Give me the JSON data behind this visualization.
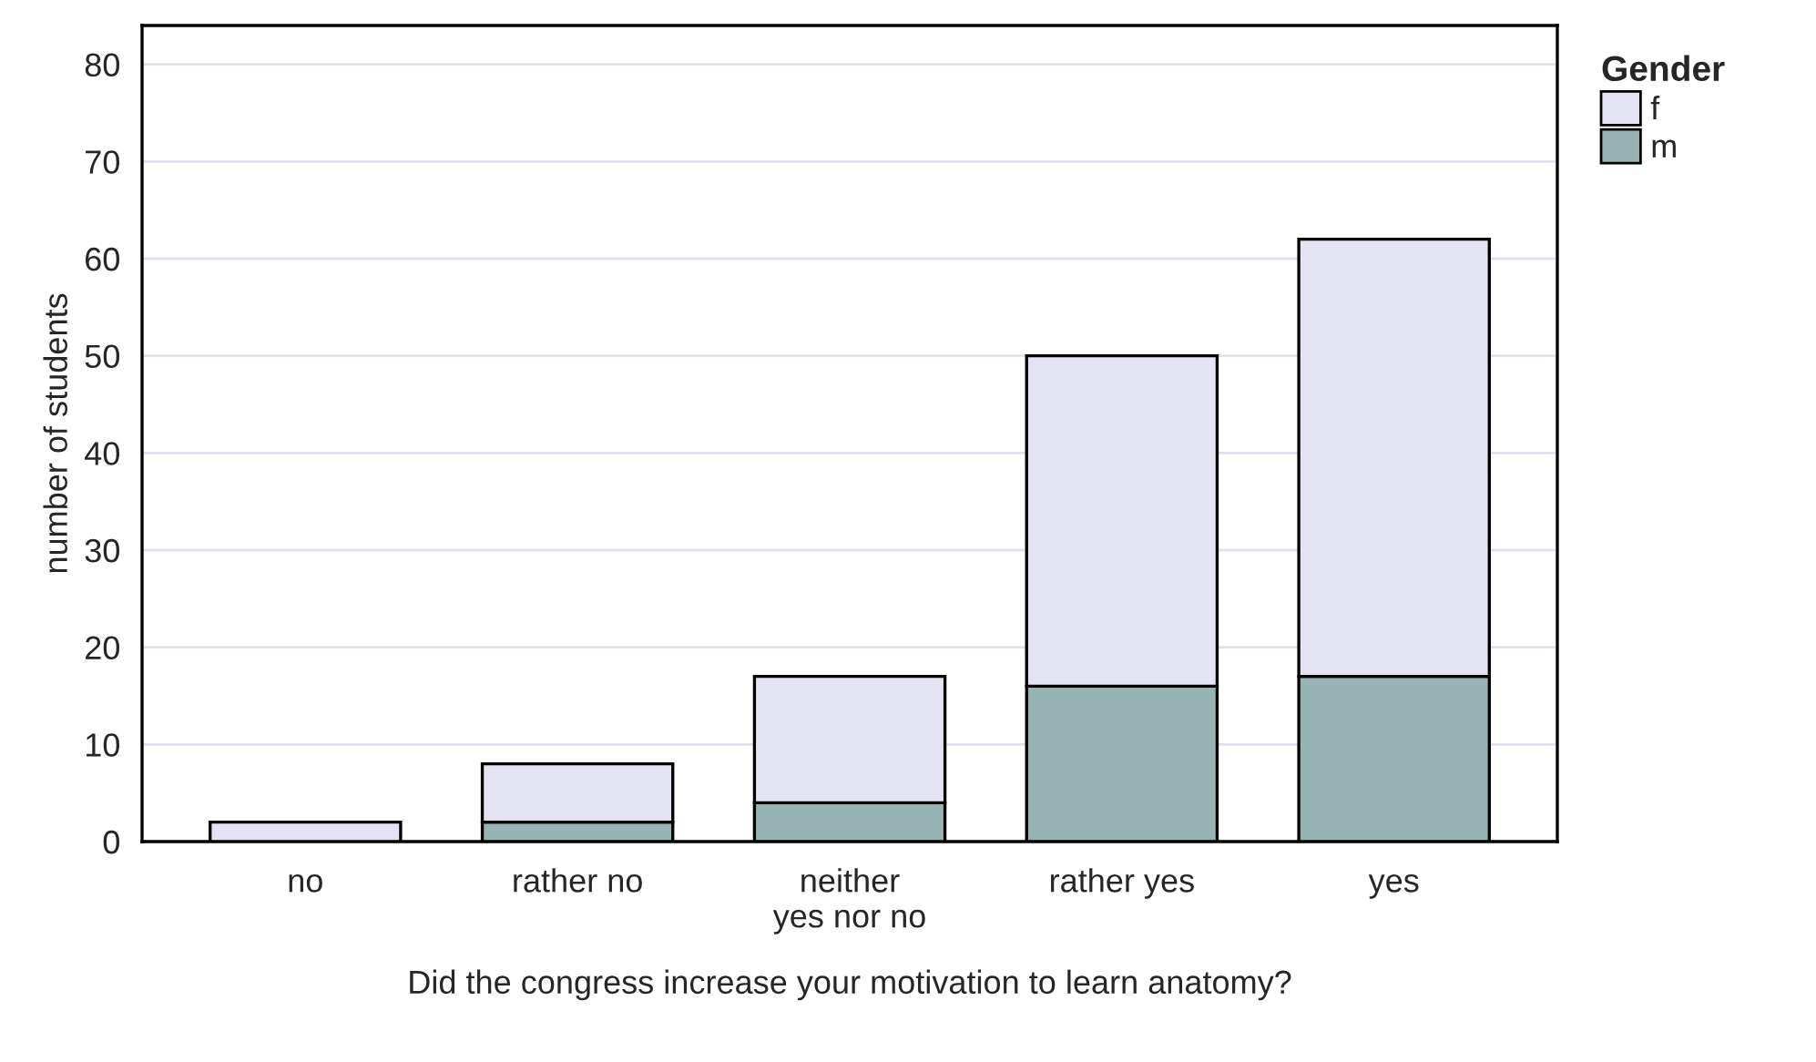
{
  "chart_data": {
    "type": "bar",
    "stacked": true,
    "xlabel": "Did the congress increase your motivation to learn anatomy?",
    "ylabel": "number of students",
    "legend_title": "Gender",
    "categories": [
      "no",
      "rather no",
      "neither\nyes nor no",
      "rather yes",
      "yes"
    ],
    "series": [
      {
        "name": "m",
        "color": "#97b3b3",
        "values": [
          0,
          2,
          4,
          16,
          17
        ]
      },
      {
        "name": "f",
        "color": "#e4e3f2",
        "values": [
          2,
          6,
          13,
          34,
          45
        ]
      }
    ],
    "ylim": [
      0,
      84
    ],
    "yticks": [
      0,
      10,
      20,
      30,
      40,
      50,
      60,
      70,
      80
    ],
    "grid": "y",
    "legend": "top right"
  }
}
